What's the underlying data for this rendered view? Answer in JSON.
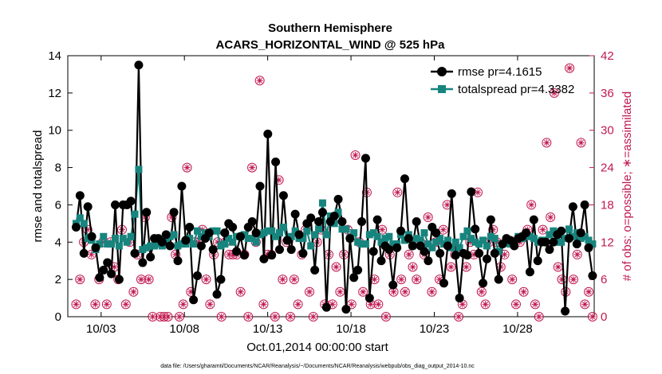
{
  "chart_data": {
    "type": "line",
    "title": "Southern Hemisphere",
    "subtitle": "ACARS_HORIZONTAL_WIND @ 525 hPa",
    "xlabel": "Oct.01,2014 00:00:00 start",
    "ylabel": "rmse and totalspread",
    "y2label": "# of obs: o=possible; ∗=assimilated",
    "footnote": "data file: /Users/gharamti/Documents/NCAR/Reanalysis/~/Documents/NCAR/Reanalysis/webpub/obs_diag_output_2014-10.nc",
    "xlim": [
      1.0,
      32.6
    ],
    "ylim": [
      0,
      14
    ],
    "y2lim": [
      0,
      42
    ],
    "x_ticks": [
      {
        "v": 3,
        "label": "10/03"
      },
      {
        "v": 8,
        "label": "10/08"
      },
      {
        "v": 13,
        "label": "10/13"
      },
      {
        "v": 18,
        "label": "10/18"
      },
      {
        "v": 23,
        "label": "10/23"
      },
      {
        "v": 28,
        "label": "10/28"
      }
    ],
    "y_ticks": [
      0,
      2,
      4,
      6,
      8,
      10,
      12,
      14
    ],
    "y2_ticks": [
      0,
      6,
      12,
      18,
      24,
      30,
      36,
      42
    ],
    "colors": {
      "rmse": "#000000",
      "spread": "#17857e",
      "obs": "#c1184f",
      "axis": "#000000"
    },
    "legend": {
      "position": "top-right",
      "entries": [
        "rmse pr=4.1615",
        "totalspread pr=4.3382"
      ]
    },
    "series": [
      {
        "name": "rmse pr=4.1615",
        "marker": "circle",
        "values": [
          4.8,
          6.5,
          3.4,
          5.9,
          4.3,
          3.7,
          2.1,
          2.5,
          2.9,
          2.3,
          6.0,
          2.0,
          6.0,
          6.0,
          6.2,
          3.4,
          13.5,
          2.9,
          5.6,
          3.2,
          4.2,
          4.2,
          4.0,
          4.4,
          3.8,
          5.6,
          3.0,
          7.0,
          4.1,
          4.8,
          0.9,
          2.2,
          3.8,
          4.2,
          4.5,
          3.6,
          1.2,
          2.0,
          4.5,
          5.0,
          4.8,
          3.5,
          4.3,
          3.3,
          4.8,
          5.1,
          4.5,
          7.0,
          3.1,
          9.8,
          3.3,
          8.3,
          3.6,
          6.5,
          4.1,
          3.6,
          5.5,
          4.4,
          3.4,
          5.0,
          5.3,
          2.5,
          5.1,
          5.6,
          0.5,
          5.1,
          5.4,
          6.3,
          5.1,
          0.4,
          4.2,
          2.1,
          2.5,
          5.1,
          8.5,
          1.0,
          3.5,
          5.2,
          3.0,
          3.8,
          3.6,
          1.7,
          3.7,
          4.6,
          7.4,
          4.2,
          3.8,
          5.1,
          3.8,
          3.5,
          3.0,
          4.8,
          4.5,
          3.4,
          1.8,
          3.8,
          6.6,
          3.3,
          1.0,
          3.4,
          3.3,
          6.7,
          4.7,
          3.4,
          1.8,
          3.1,
          5.2,
          3.4,
          2.0,
          3.9,
          4.2,
          4.1,
          3.8,
          4.2,
          4.3,
          4.5,
          2.4,
          5.2,
          3.0,
          4.0,
          4.0,
          3.6,
          4.0,
          4.4,
          4.6,
          0.3,
          4.2,
          5.9,
          3.9,
          4.5,
          6.0,
          3.7,
          2.2
        ]
      },
      {
        "name": "totalspread pr=4.3382",
        "marker": "square",
        "values": [
          5.0,
          5.3,
          5.0,
          4.2,
          4.1,
          3.6,
          3.9,
          4.3,
          3.9,
          3.9,
          4.2,
          3.8,
          4.2,
          4.0,
          4.3,
          5.5,
          7.9,
          3.6,
          3.7,
          3.8,
          3.8,
          3.9,
          3.8,
          4.0,
          4.3,
          4.4,
          3.8,
          3.9,
          3.9,
          4.2,
          3.9,
          4.6,
          4.3,
          4.5,
          4.3,
          4.6,
          4.6,
          3.8,
          3.9,
          4.2,
          4.0,
          4.3,
          4.3,
          4.4,
          4.2,
          4.2,
          4.0,
          4.4,
          4.5,
          4.6,
          4.6,
          4.3,
          4.5,
          4.8,
          4.1,
          4.3,
          4.6,
          4.2,
          4.2,
          4.6,
          3.8,
          4.4,
          4.7,
          6.1,
          4.4,
          5.4,
          5.0,
          5.6,
          4.7,
          4.7,
          4.2,
          4.5,
          4.0,
          3.9,
          3.9,
          4.4,
          4.5,
          4.3,
          4.0,
          4.2,
          4.3,
          3.9,
          3.9,
          4.4,
          4.1,
          4.4,
          3.8,
          4.2,
          4.1,
          4.5,
          3.9,
          3.7,
          4.0,
          4.2,
          3.9,
          4.1,
          3.7,
          4.0,
          3.7,
          4.3,
          4.6,
          4.2,
          4.0,
          3.9,
          4.1,
          3.8,
          4.3,
          4.2,
          3.5,
          3.9,
          4.0,
          3.9,
          4.0,
          4.3,
          4.2,
          4.4,
          4.3,
          4.2,
          4.0,
          4.1,
          4.1,
          4.4,
          4.6,
          4.0,
          4.0,
          4.2,
          4.7,
          4.3,
          4.5,
          4.2,
          4.3,
          4.1,
          3.9
        ]
      },
      {
        "name": "# of obs possible",
        "axis": "right",
        "marker": "circle-star",
        "values": [
          2,
          6,
          12,
          14,
          10,
          2,
          6,
          12,
          2,
          12,
          8,
          6,
          14,
          2,
          12,
          4,
          10,
          6,
          16,
          6,
          0,
          12,
          0,
          0,
          0,
          16,
          10,
          0,
          2,
          24,
          4,
          12,
          12,
          14,
          6,
          2,
          10,
          12,
          0,
          12,
          10,
          10,
          10,
          4,
          10,
          0,
          24,
          12,
          38,
          2,
          10,
          10,
          0,
          22,
          6,
          12,
          0,
          6,
          2,
          10,
          14,
          4,
          0,
          12,
          14,
          2,
          10,
          2,
          8,
          4,
          10,
          14,
          2,
          26,
          12,
          4,
          20,
          2,
          6,
          2,
          14,
          0,
          10,
          4,
          20,
          6,
          4,
          10,
          8,
          6,
          12,
          10,
          16,
          4,
          12,
          6,
          14,
          18,
          8,
          10,
          0,
          2,
          8,
          12,
          10,
          20,
          4,
          2,
          12,
          14,
          12,
          8,
          10,
          12,
          6,
          2,
          12,
          4,
          14,
          18,
          2,
          0,
          14,
          28,
          16,
          36,
          8,
          6,
          4,
          40,
          6,
          10,
          28,
          2,
          4,
          0
        ]
      },
      {
        "name": "# of obs assimilated",
        "axis": "right",
        "marker": "star",
        "values": [
          2,
          6,
          12,
          14,
          10,
          2,
          6,
          12,
          2,
          12,
          8,
          6,
          14,
          2,
          12,
          4,
          10,
          6,
          16,
          6,
          0,
          12,
          0,
          0,
          0,
          16,
          10,
          0,
          2,
          24,
          4,
          12,
          12,
          14,
          6,
          2,
          10,
          12,
          0,
          12,
          10,
          10,
          10,
          4,
          10,
          0,
          24,
          12,
          38,
          2,
          10,
          10,
          0,
          22,
          6,
          12,
          0,
          6,
          2,
          10,
          14,
          4,
          0,
          12,
          14,
          2,
          10,
          2,
          8,
          4,
          10,
          14,
          2,
          26,
          12,
          4,
          20,
          2,
          6,
          2,
          14,
          0,
          10,
          4,
          20,
          6,
          4,
          10,
          8,
          6,
          12,
          10,
          16,
          4,
          12,
          6,
          14,
          18,
          8,
          10,
          0,
          2,
          8,
          12,
          10,
          20,
          4,
          2,
          12,
          14,
          12,
          8,
          10,
          12,
          6,
          2,
          12,
          4,
          14,
          18,
          2,
          0,
          14,
          28,
          16,
          36,
          8,
          6,
          4,
          40,
          6,
          10,
          28,
          2,
          4,
          0
        ]
      }
    ]
  }
}
